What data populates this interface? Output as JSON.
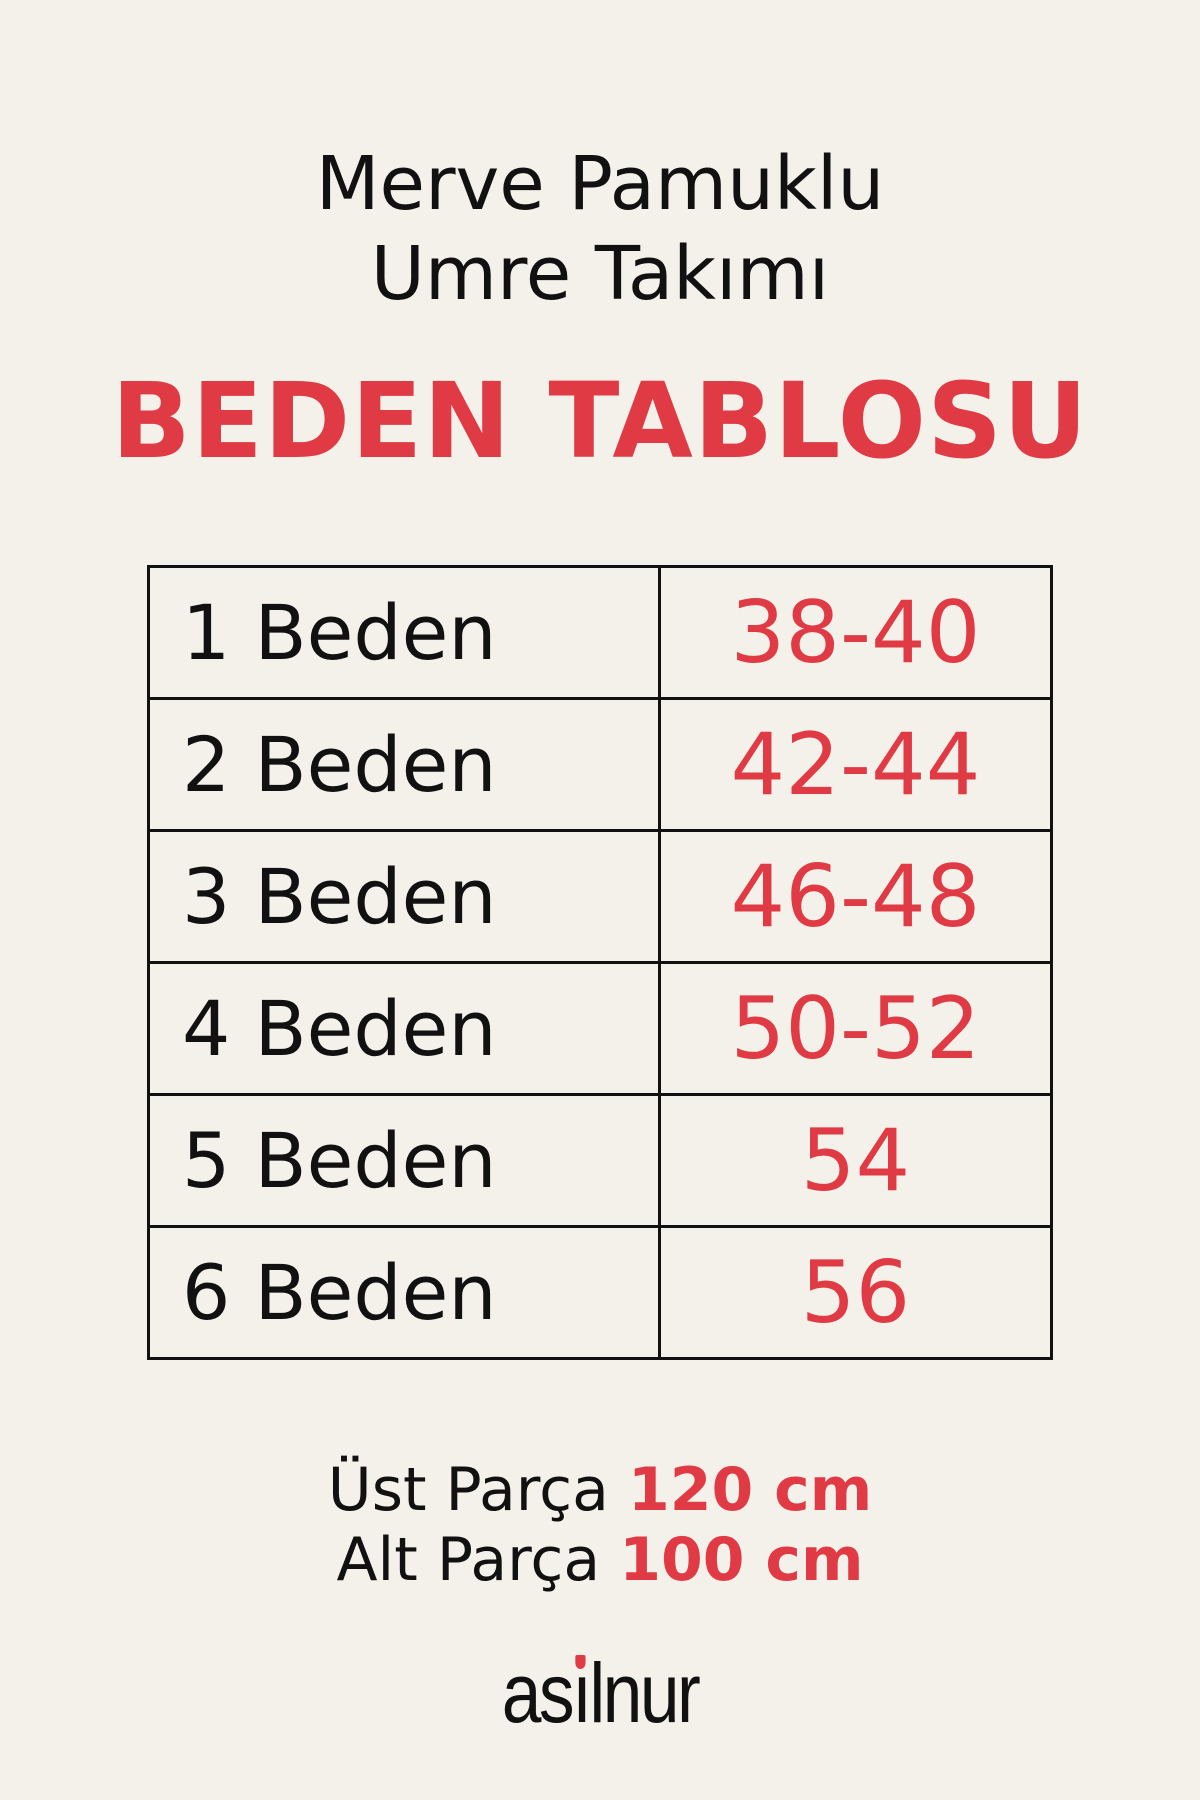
{
  "title": {
    "line1": "Merve Pamuklu",
    "line2": "Umre Takımı"
  },
  "heading": "BEDEN TABLOSU",
  "table": {
    "rows": [
      {
        "label": "1 Beden",
        "value": "38-40"
      },
      {
        "label": "2 Beden",
        "value": "42-44"
      },
      {
        "label": "3 Beden",
        "value": "46-48"
      },
      {
        "label": "4 Beden",
        "value": "50-52"
      },
      {
        "label": "5 Beden",
        "value": "54"
      },
      {
        "label": "6 Beden",
        "value": "56"
      }
    ]
  },
  "parts": {
    "top": {
      "label": "Üst Parça",
      "value": "120 cm"
    },
    "bottom": {
      "label": "Alt Parça",
      "value": "100 cm"
    }
  },
  "logo": {
    "pre": "as",
    "i": "ı",
    "post": "lnur",
    "text": "asilnur"
  },
  "colors": {
    "accent": "#e03b45",
    "background": "#f4f1ea",
    "text": "#111111"
  }
}
